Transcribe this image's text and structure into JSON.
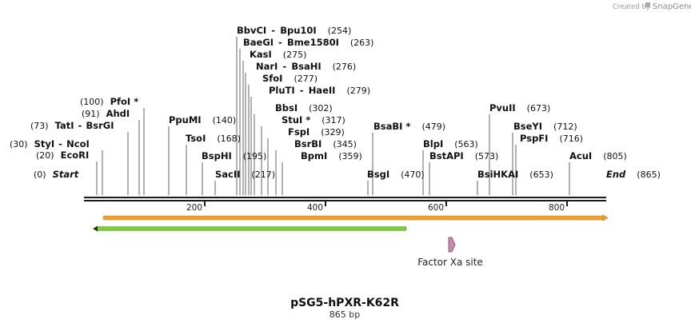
{
  "credit": {
    "prefix": "Created by",
    "brand": "SnapGene"
  },
  "map": {
    "name": "pSG5-hPXR-K62R",
    "length_bp": 865,
    "length_label": "865 bp",
    "ticks": [
      "200",
      "400",
      "600",
      "800"
    ],
    "tick_values": [
      200,
      400,
      600,
      800
    ],
    "colors": {
      "backbone": "#1a1a1a",
      "orange_feature": "#f0a030",
      "green_feature": "#7ccc3a",
      "factor_xa": "#c88ab0"
    }
  },
  "sites": [
    {
      "name": "Start",
      "pos": "(0)",
      "bp": 0,
      "terminal": true
    },
    {
      "name": "EcoRI",
      "pos": "(20)",
      "bp": 20
    },
    {
      "name": "StyI",
      "name2": "NcoI",
      "pos": "(30)",
      "bp": 30
    },
    {
      "name": "TatI",
      "name2": "BsrGI",
      "pos": "(73)",
      "bp": 73
    },
    {
      "name": "AhdI",
      "pos": "(91)",
      "bp": 91
    },
    {
      "name": "PfoI *",
      "pos": "(100)",
      "bp": 100
    },
    {
      "name": "PpuMI",
      "pos": "(140)",
      "bp": 140
    },
    {
      "name": "TsoI",
      "pos": "(168)",
      "bp": 168
    },
    {
      "name": "BspHI",
      "pos": "(195)",
      "bp": 195
    },
    {
      "name": "SacII",
      "pos": "(217)",
      "bp": 217
    },
    {
      "name": "BbvCI",
      "name2": "Bpu10I",
      "pos": "(254)",
      "bp": 254
    },
    {
      "name": "BaeGI",
      "name2": "Bme1580I",
      "pos": "(263)",
      "bp": 263
    },
    {
      "name": "KasI",
      "pos": "(275)",
      "bp": 275
    },
    {
      "name": "NarI",
      "name2": "BsaHI",
      "pos": "(276)",
      "bp": 276
    },
    {
      "name": "SfoI",
      "pos": "(277)",
      "bp": 277
    },
    {
      "name": "PluTI",
      "name2": "HaeII",
      "pos": "(279)",
      "bp": 279
    },
    {
      "name": "BbsI",
      "pos": "(302)",
      "bp": 302
    },
    {
      "name": "StuI *",
      "pos": "(317)",
      "bp": 317
    },
    {
      "name": "FspI",
      "pos": "(329)",
      "bp": 329
    },
    {
      "name": "BsrBI",
      "pos": "(345)",
      "bp": 345
    },
    {
      "name": "BpmI",
      "pos": "(359)",
      "bp": 359
    },
    {
      "name": "BsgI",
      "pos": "(470)",
      "bp": 470
    },
    {
      "name": "BsaBI *",
      "pos": "(479)",
      "bp": 479
    },
    {
      "name": "BlpI",
      "pos": "(563)",
      "bp": 563
    },
    {
      "name": "BstAPI",
      "pos": "(573)",
      "bp": 573
    },
    {
      "name": "BsiHKAI",
      "pos": "(653)",
      "bp": 653
    },
    {
      "name": "PvuII",
      "pos": "(673)",
      "bp": 673
    },
    {
      "name": "BseYI",
      "pos": "(712)",
      "bp": 712
    },
    {
      "name": "PspFI",
      "pos": "(716)",
      "bp": 716
    },
    {
      "name": "AcuI",
      "pos": "(805)",
      "bp": 805
    },
    {
      "name": "End",
      "pos": "(865)",
      "bp": 865,
      "terminal": true
    }
  ],
  "features": [
    {
      "label": "",
      "start_bp": 30,
      "end_bp": 865,
      "direction": "forward",
      "color": "#f0a030"
    },
    {
      "label": "",
      "start_bp": 15,
      "end_bp": 540,
      "direction": "reverse",
      "color": "#7ccc3a"
    },
    {
      "label": "Factor Xa site",
      "start_bp": 590,
      "end_bp": 602,
      "direction": "forward",
      "color": "#c88ab0"
    }
  ]
}
